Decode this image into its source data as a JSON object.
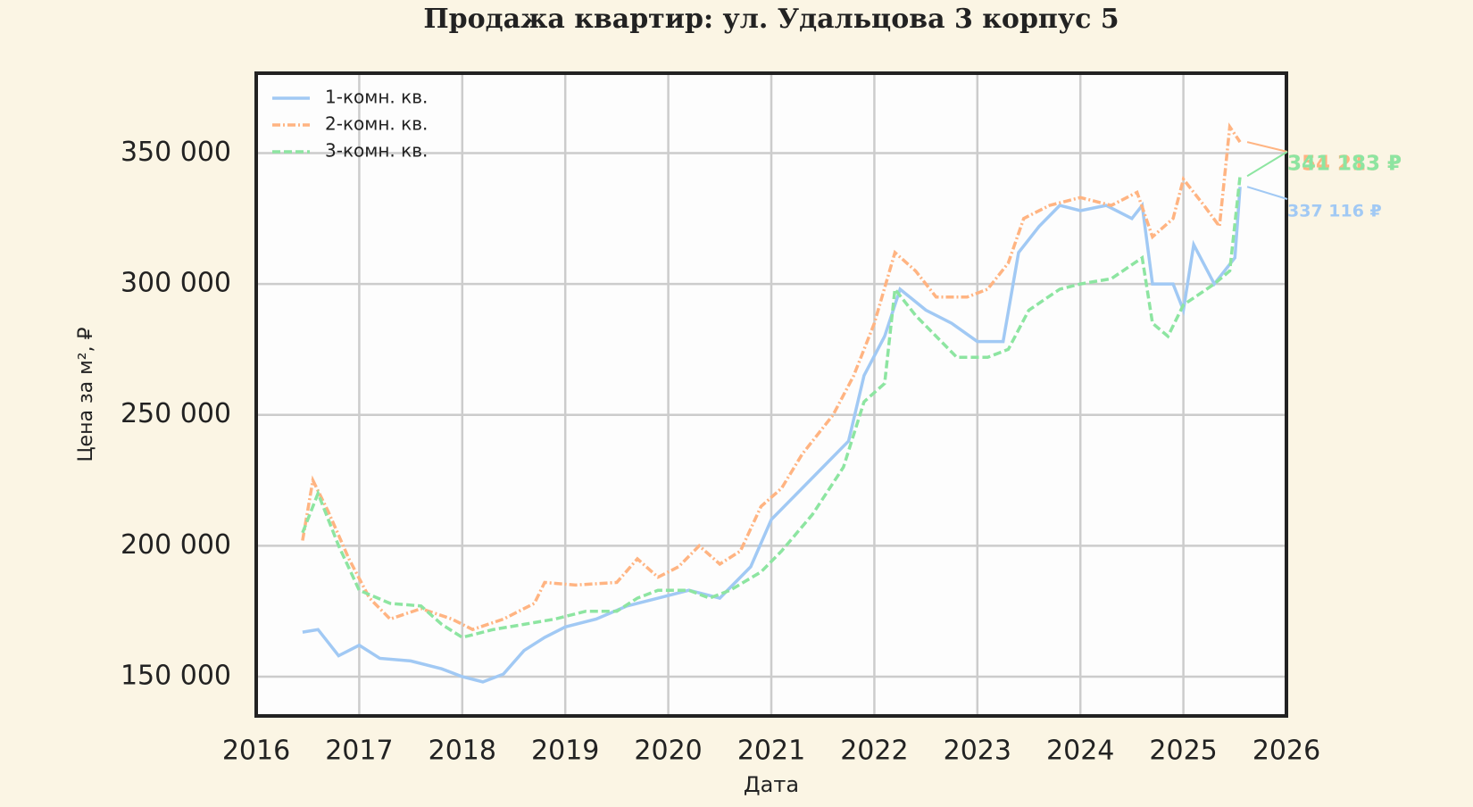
{
  "chart_data": {
    "type": "line",
    "title": "Продажа квартир: ул. Удальцова 3 корпус 5",
    "x_label": "Дата",
    "y_label": "Цена за м², ₽",
    "xlim": [
      2016,
      2026
    ],
    "xticks": [
      2016,
      2017,
      2018,
      2019,
      2020,
      2021,
      2022,
      2023,
      2024,
      2025,
      2026
    ],
    "ylim": [
      135000,
      380500
    ],
    "yticks": [
      {
        "value": 150000,
        "label": "150 000"
      },
      {
        "value": 200000,
        "label": "200 000"
      },
      {
        "value": 250000,
        "label": "250 000"
      },
      {
        "value": 300000,
        "label": "300 000"
      },
      {
        "value": 350000,
        "label": "350 000"
      }
    ],
    "grid": true,
    "legend": "upper left",
    "series": [
      {
        "name": "1-комн. кв.",
        "color": "#a1c9f4",
        "dash": "solid",
        "x": [
          2016.45,
          2016.6,
          2016.8,
          2017.0,
          2017.2,
          2017.5,
          2017.8,
          2018.0,
          2018.2,
          2018.4,
          2018.6,
          2018.8,
          2019.0,
          2019.3,
          2019.6,
          2019.9,
          2020.2,
          2020.5,
          2020.8,
          2021.0,
          2021.2,
          2021.5,
          2021.75,
          2021.9,
          2022.1,
          2022.25,
          2022.5,
          2022.75,
          2023.0,
          2023.25,
          2023.4,
          2023.6,
          2023.8,
          2024.0,
          2024.25,
          2024.5,
          2024.6,
          2024.7,
          2024.9,
          2025.0,
          2025.1,
          2025.3,
          2025.5,
          2025.55
        ],
        "values": [
          167000,
          168000,
          158000,
          162000,
          157000,
          156000,
          153000,
          150000,
          148000,
          151000,
          160000,
          165000,
          169000,
          172000,
          177000,
          180000,
          183000,
          180000,
          192000,
          210000,
          218000,
          230000,
          240000,
          265000,
          280000,
          298000,
          290000,
          285000,
          278000,
          278000,
          312000,
          322000,
          330000,
          328000,
          330000,
          325000,
          330000,
          300000,
          300000,
          290000,
          315000,
          300000,
          310000,
          337116
        ]
      },
      {
        "name": "2-комн. кв.",
        "color": "#ffb482",
        "dash": "dashdot",
        "x": [
          2016.45,
          2016.55,
          2016.7,
          2016.9,
          2017.1,
          2017.3,
          2017.6,
          2017.9,
          2018.1,
          2018.4,
          2018.7,
          2018.8,
          2019.1,
          2019.5,
          2019.7,
          2019.9,
          2020.1,
          2020.3,
          2020.5,
          2020.7,
          2020.9,
          2021.1,
          2021.3,
          2021.6,
          2021.8,
          2022.0,
          2022.2,
          2022.4,
          2022.6,
          2022.9,
          2023.1,
          2023.3,
          2023.45,
          2023.7,
          2024.0,
          2024.3,
          2024.55,
          2024.7,
          2024.9,
          2025.0,
          2025.2,
          2025.35,
          2025.45,
          2025.55
        ],
        "values": [
          202000,
          225000,
          213000,
          195000,
          180000,
          172000,
          176000,
          172000,
          168000,
          172000,
          178000,
          186000,
          185000,
          186000,
          195000,
          188000,
          192000,
          200000,
          193000,
          198000,
          215000,
          222000,
          235000,
          250000,
          265000,
          285000,
          312000,
          305000,
          295000,
          295000,
          298000,
          308000,
          325000,
          330000,
          333000,
          330000,
          335000,
          318000,
          325000,
          340000,
          330000,
          322000,
          360000,
          354213
        ]
      },
      {
        "name": "3-комн. кв.",
        "color": "#8de5a1",
        "dash": "dashed",
        "x": [
          2016.45,
          2016.6,
          2016.8,
          2017.0,
          2017.3,
          2017.6,
          2017.8,
          2018.0,
          2018.3,
          2018.6,
          2018.9,
          2019.2,
          2019.5,
          2019.7,
          2019.9,
          2020.2,
          2020.4,
          2020.6,
          2020.9,
          2021.1,
          2021.4,
          2021.7,
          2021.9,
          2022.1,
          2022.2,
          2022.4,
          2022.6,
          2022.8,
          2023.1,
          2023.3,
          2023.5,
          2023.8,
          2024.0,
          2024.3,
          2024.6,
          2024.7,
          2024.85,
          2025.0,
          2025.3,
          2025.45,
          2025.55
        ],
        "values": [
          205000,
          220000,
          200000,
          183000,
          178000,
          177000,
          170000,
          165000,
          168000,
          170000,
          172000,
          175000,
          175000,
          180000,
          183000,
          183000,
          180000,
          183000,
          190000,
          198000,
          212000,
          230000,
          255000,
          262000,
          298000,
          288000,
          280000,
          272000,
          272000,
          275000,
          290000,
          298000,
          300000,
          302000,
          310000,
          285000,
          280000,
          292000,
          300000,
          305000,
          341183
        ]
      }
    ],
    "annotations": [
      {
        "text": "354 213 ₽",
        "series": 1
      },
      {
        "text": "341 183 ₽",
        "series": 2
      },
      {
        "text": "337 116 ₽",
        "series": 0
      }
    ]
  }
}
